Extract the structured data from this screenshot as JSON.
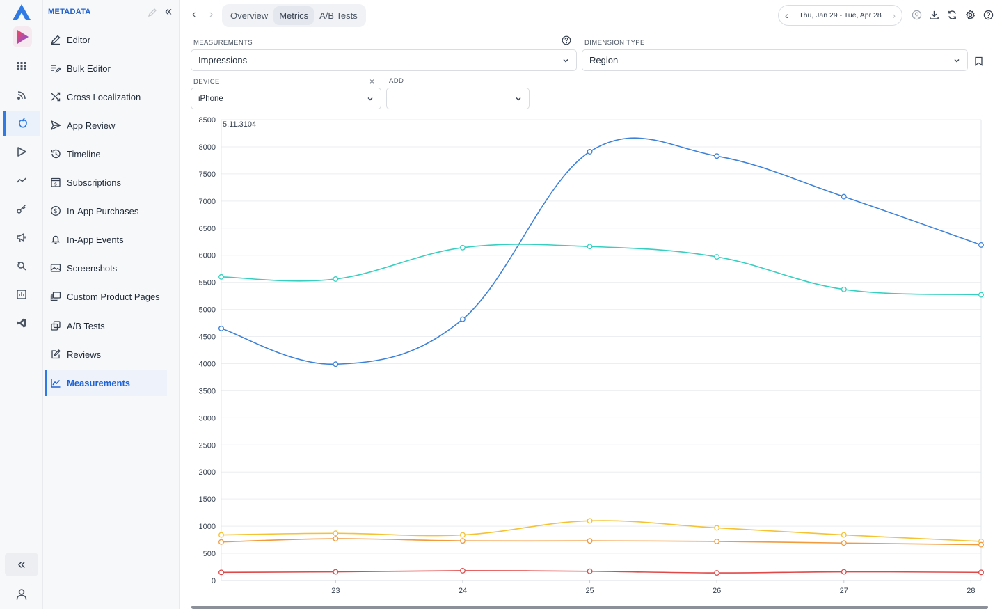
{
  "rail": {
    "icons": [
      "grid-icon",
      "rss-icon",
      "apple-icon",
      "play-store-icon",
      "trend-icon",
      "key-icon",
      "megaphone-icon",
      "search-keyword-icon",
      "report-icon",
      "vscode-icon"
    ],
    "active": "apple-icon"
  },
  "sidebar": {
    "title": "METADATA",
    "items": [
      {
        "label": "Editor",
        "icon": "pencil-icon"
      },
      {
        "label": "Bulk Editor",
        "icon": "bulk-edit-icon"
      },
      {
        "label": "Cross Localization",
        "icon": "shuffle-icon"
      },
      {
        "label": "App Review",
        "icon": "send-icon"
      },
      {
        "label": "Timeline",
        "icon": "history-icon"
      },
      {
        "label": "Subscriptions",
        "icon": "subscription-icon"
      },
      {
        "label": "In-App Purchases",
        "icon": "dollar-icon"
      },
      {
        "label": "In-App Events",
        "icon": "bell-icon"
      },
      {
        "label": "Screenshots",
        "icon": "image-icon"
      },
      {
        "label": "Custom Product Pages",
        "icon": "layers-icon"
      },
      {
        "label": "A/B Tests",
        "icon": "copy-icon"
      },
      {
        "label": "Reviews",
        "icon": "review-icon"
      },
      {
        "label": "Measurements",
        "icon": "chart-line-icon",
        "active": true
      }
    ]
  },
  "header": {
    "tabs": [
      {
        "label": "Overview",
        "active": false
      },
      {
        "label": "Metrics",
        "active": true
      },
      {
        "label": "A/B Tests",
        "active": false
      }
    ],
    "date_range": "Thu, Jan 29 - Tue, Apr 28"
  },
  "filters": {
    "measurements_label": "MEASUREMENTS",
    "measurements_value": "Impressions",
    "dimension_label": "DIMENSION TYPE",
    "dimension_value": "Region",
    "device_label": "DEVICE",
    "device_value": "iPhone",
    "device_clear": "×",
    "add_label": "ADD",
    "add_value": ""
  },
  "chart_data": {
    "type": "line",
    "annotation": "5.11.3104",
    "x": [
      22.1,
      23,
      24,
      25,
      26,
      27,
      28.08
    ],
    "x_ticks": [
      23,
      24,
      25,
      26,
      27,
      28
    ],
    "ylim": [
      0,
      8500
    ],
    "y_ticks": [
      0,
      500,
      1000,
      1500,
      2000,
      2500,
      3000,
      3500,
      4000,
      4500,
      5000,
      5500,
      6000,
      6500,
      7000,
      7500,
      8000,
      8500
    ],
    "grid": true,
    "series": [
      {
        "color": "#3e82d8",
        "values": [
          4650,
          3990,
          4820,
          7910,
          7830,
          7080,
          6190
        ]
      },
      {
        "color": "#37cfc0",
        "values": [
          5600,
          5560,
          6140,
          6160,
          5970,
          5370,
          5270
        ]
      },
      {
        "color": "#f5c232",
        "values": [
          840,
          870,
          840,
          1100,
          970,
          840,
          720
        ]
      },
      {
        "color": "#f19a3e",
        "values": [
          710,
          770,
          730,
          730,
          720,
          690,
          660
        ]
      },
      {
        "color": "#e14848",
        "values": [
          150,
          160,
          180,
          170,
          140,
          160,
          150
        ]
      }
    ]
  }
}
